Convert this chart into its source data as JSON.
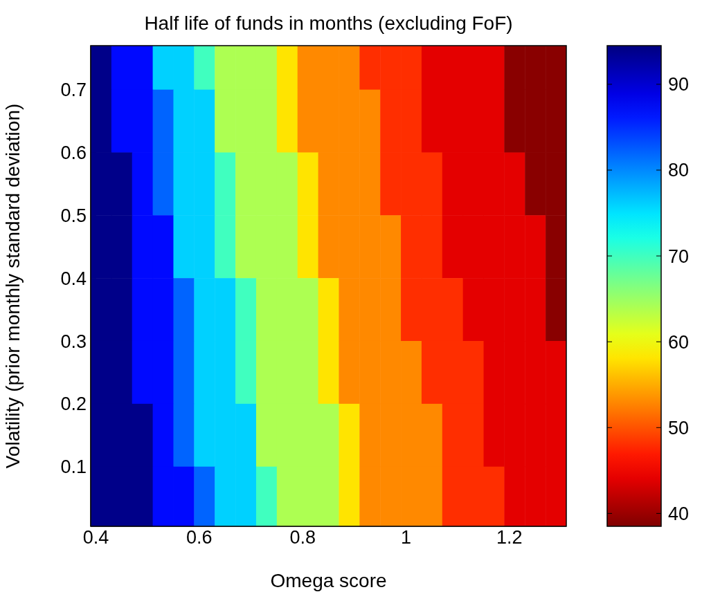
{
  "chart_data": {
    "type": "heatmap",
    "title": "Half life of funds in months (excluding FoF)",
    "xlabel": "Omega score",
    "ylabel": "Volatility (prior monthly standard deviation)",
    "x": [
      0.41,
      0.45,
      0.49,
      0.53,
      0.57,
      0.61,
      0.65,
      0.69,
      0.73,
      0.77,
      0.81,
      0.85,
      0.89,
      0.93,
      0.97,
      1.01,
      1.05,
      1.09,
      1.13,
      1.17,
      1.21,
      1.25,
      1.29
    ],
    "y": [
      0.75,
      0.65,
      0.55,
      0.45,
      0.35,
      0.25,
      0.15,
      0.05
    ],
    "cells": [
      [
        94,
        87,
        87,
        76,
        76,
        70,
        64,
        64,
        64,
        58,
        53,
        53,
        53,
        48,
        48,
        48,
        44,
        44,
        44,
        44,
        39,
        39,
        39
      ],
      [
        94,
        87,
        87,
        82,
        76,
        76,
        64,
        64,
        64,
        58,
        53,
        53,
        53,
        53,
        48,
        48,
        44,
        44,
        44,
        44,
        39,
        39,
        39
      ],
      [
        94,
        94,
        87,
        82,
        76,
        76,
        70,
        64,
        64,
        64,
        58,
        53,
        53,
        53,
        48,
        48,
        48,
        44,
        44,
        44,
        44,
        39,
        39
      ],
      [
        94,
        94,
        87,
        87,
        76,
        76,
        70,
        64,
        64,
        64,
        58,
        53,
        53,
        53,
        53,
        48,
        48,
        44,
        44,
        44,
        44,
        44,
        39
      ],
      [
        94,
        94,
        87,
        87,
        82,
        76,
        76,
        70,
        64,
        64,
        64,
        58,
        53,
        53,
        53,
        48,
        48,
        48,
        44,
        44,
        44,
        44,
        39
      ],
      [
        94,
        94,
        87,
        87,
        82,
        76,
        76,
        70,
        64,
        64,
        64,
        58,
        53,
        53,
        53,
        53,
        48,
        48,
        48,
        44,
        44,
        44,
        44
      ],
      [
        94,
        94,
        94,
        87,
        82,
        76,
        76,
        76,
        64,
        64,
        64,
        64,
        58,
        53,
        53,
        53,
        53,
        48,
        48,
        44,
        44,
        44,
        44
      ],
      [
        94,
        94,
        94,
        87,
        87,
        82,
        76,
        76,
        70,
        64,
        64,
        64,
        58,
        53,
        53,
        53,
        53,
        48,
        48,
        48,
        44,
        44,
        44
      ]
    ],
    "xlim": [
      0.39,
      1.31
    ],
    "xticks": [
      0.4,
      0.6,
      0.8,
      1,
      1.2
    ],
    "ylim": [
      0.005,
      0.77
    ],
    "yticks": [
      0.1,
      0.2,
      0.3,
      0.4,
      0.5,
      0.6,
      0.7
    ],
    "clim": [
      38.5,
      94.5
    ],
    "cticks": [
      40,
      50,
      60,
      70,
      80,
      90
    ]
  }
}
